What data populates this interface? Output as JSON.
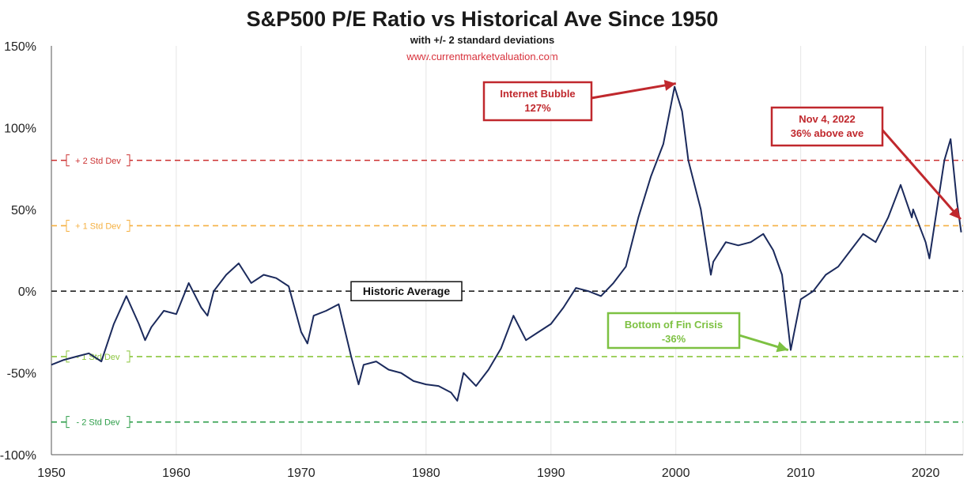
{
  "chart_data": {
    "type": "line",
    "title": "S&P500 P/E Ratio vs Historical Ave Since 1950",
    "subtitle": "with +/- 2 standard deviations",
    "source": "www.currentmarketvaluation.com",
    "xlim": [
      1950,
      2023
    ],
    "ylim": [
      -100,
      150
    ],
    "x_ticks": [
      "1950",
      "1960",
      "1970",
      "1980",
      "1990",
      "2000",
      "2010",
      "2020"
    ],
    "y_ticks": [
      "150%",
      "100%",
      "50%",
      "0%",
      "-50%",
      "-100%"
    ],
    "grid": "vertical",
    "series": [
      {
        "color": "#1b2a5c",
        "x": [
          1950,
          1951,
          1952,
          1953,
          1954,
          1955,
          1956,
          1957,
          1957.5,
          1958,
          1959,
          1960,
          1961,
          1962,
          1962.5,
          1963,
          1964,
          1965,
          1966,
          1967,
          1968,
          1969,
          1970,
          1970.5,
          1971,
          1972,
          1973,
          1974,
          1974.6,
          1975,
          1976,
          1977,
          1978,
          1979,
          1980,
          1981,
          1982,
          1982.5,
          1983,
          1984,
          1985,
          1986,
          1987,
          1988,
          1989,
          1990,
          1991,
          1992,
          1993,
          1994,
          1995,
          1996,
          1997,
          1998,
          1999,
          1999.9,
          2000.5,
          2001,
          2002,
          2002.8,
          2003,
          2004,
          2005,
          2006,
          2007,
          2007.8,
          2008.5,
          2009.2,
          2010,
          2011,
          2012,
          2013,
          2014,
          2015,
          2016,
          2017,
          2018,
          2018.9,
          2019,
          2020,
          2020.3,
          2021,
          2021.5,
          2022,
          2022.5,
          2022.85
        ],
        "values": [
          -45,
          -42,
          -40,
          -38,
          -43,
          -20,
          -3,
          -20,
          -30,
          -22,
          -12,
          -14,
          5,
          -10,
          -15,
          0,
          10,
          17,
          5,
          10,
          8,
          3,
          -25,
          -32,
          -15,
          -12,
          -8,
          -40,
          -57,
          -45,
          -43,
          -48,
          -50,
          -55,
          -57,
          -58,
          -62,
          -67,
          -50,
          -58,
          -48,
          -35,
          -15,
          -30,
          -25,
          -20,
          -10,
          2,
          0,
          -3,
          5,
          15,
          45,
          70,
          90,
          125,
          110,
          80,
          50,
          10,
          18,
          30,
          28,
          30,
          35,
          25,
          10,
          -36,
          -5,
          0,
          10,
          15,
          25,
          35,
          30,
          45,
          65,
          45,
          50,
          30,
          20,
          55,
          80,
          93,
          55,
          36
        ]
      }
    ],
    "reference_lines": [
      {
        "label": "+ 2 Std Dev",
        "value": 80,
        "color": "#cc3333"
      },
      {
        "label": "+ 1 Std Dev",
        "value": 40,
        "color": "#f5b041"
      },
      {
        "label": "Historic Average",
        "value": 0,
        "color": "#222222"
      },
      {
        "label": "- 1 Std Dev",
        "value": -40,
        "color": "#8cc63f"
      },
      {
        "label": "- 2 Std Dev",
        "value": -80,
        "color": "#2e9e4a"
      }
    ],
    "annotations": [
      {
        "lines": [
          "Internet Bubble",
          "127%"
        ],
        "color": "#c0282d",
        "target": [
          2000,
          127
        ]
      },
      {
        "lines": [
          "Nov 4, 2022",
          "36% above ave"
        ],
        "color": "#c0282d",
        "target": [
          2022.8,
          44
        ]
      },
      {
        "lines": [
          "Bottom of Fin Crisis",
          "-36%"
        ],
        "color": "#7dc142",
        "target": [
          2009,
          -36
        ]
      }
    ]
  }
}
